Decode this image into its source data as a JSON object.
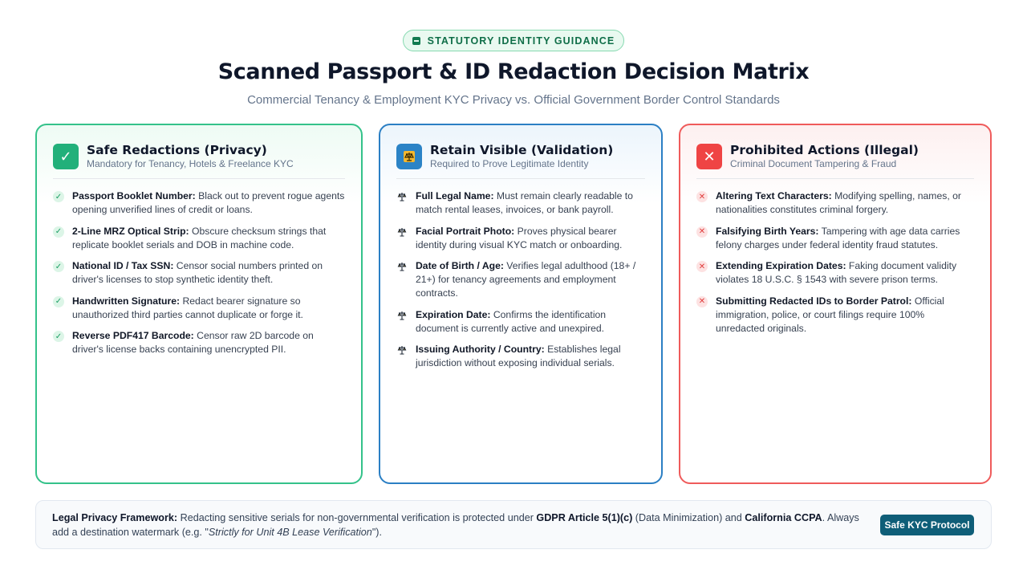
{
  "header": {
    "badge": "STATUTORY IDENTITY GUIDANCE",
    "title": "Scanned Passport & ID Redaction Decision Matrix",
    "subtitle": "Commercial Tenancy & Employment KYC Privacy vs. Official Government Border Control Standards"
  },
  "colors": {
    "safe": "#22b07a",
    "retain": "#2b83c6",
    "prohibited": "#ef4444",
    "button": "#0f5e78"
  },
  "cards": {
    "safe": {
      "icon": "checkmark-icon",
      "title": "Safe Redactions (Privacy)",
      "subtitle": "Mandatory for Tenancy, Hotels & Freelance KYC",
      "items": [
        {
          "term": "Passport Booklet Number:",
          "desc": " Black out to prevent rogue agents opening unverified lines of credit or loans."
        },
        {
          "term": "2-Line MRZ Optical Strip:",
          "desc": " Obscure checksum strings that replicate booklet serials and DOB in machine code."
        },
        {
          "term": "National ID / Tax SSN:",
          "desc": " Censor social numbers printed on driver's licenses to stop synthetic identity theft."
        },
        {
          "term": "Handwritten Signature:",
          "desc": " Redact bearer signature so unauthorized third parties cannot duplicate or forge it."
        },
        {
          "term": "Reverse PDF417 Barcode:",
          "desc": " Censor raw 2D barcode on driver's license backs containing unencrypted PII."
        }
      ]
    },
    "retain": {
      "icon": "scales-icon",
      "title": "Retain Visible (Validation)",
      "subtitle": "Required to Prove Legitimate Identity",
      "items": [
        {
          "term": "Full Legal Name:",
          "desc": " Must remain clearly readable to match rental leases, invoices, or bank payroll."
        },
        {
          "term": "Facial Portrait Photo:",
          "desc": " Proves physical bearer identity during visual KYC match or onboarding."
        },
        {
          "term": "Date of Birth / Age:",
          "desc": " Verifies legal adulthood (18+ / 21+) for tenancy agreements and employment contracts."
        },
        {
          "term": "Expiration Date:",
          "desc": " Confirms the identification document is currently active and unexpired."
        },
        {
          "term": "Issuing Authority / Country:",
          "desc": " Establishes legal jurisdiction without exposing individual serials."
        }
      ]
    },
    "prohibited": {
      "icon": "cross-icon",
      "title": "Prohibited Actions (Illegal)",
      "subtitle": "Criminal Document Tampering & Fraud",
      "items": [
        {
          "term": "Altering Text Characters:",
          "desc": " Modifying spelling, names, or nationalities constitutes criminal forgery."
        },
        {
          "term": "Falsifying Birth Years:",
          "desc": " Tampering with age data carries felony charges under federal identity fraud statutes."
        },
        {
          "term": "Extending Expiration Dates:",
          "desc": " Faking document validity violates 18 U.S.C. § 1543 with severe prison terms."
        },
        {
          "term": "Submitting Redacted IDs to Border Patrol:",
          "desc": " Official immigration, police, or court filings require 100% unredacted originals."
        }
      ]
    }
  },
  "footer": {
    "lead": "Legal Privacy Framework:",
    "text1": " Redacting sensitive serials for non-governmental verification is protected under ",
    "gdpr": "GDPR Article 5(1)(c)",
    "text2": " (Data Minimization) and ",
    "ccpa": "California CCPA",
    "text3": ". Always add a destination watermark (e.g. \"",
    "example": "Strictly for Unit 4B Lease Verification",
    "text4": "\").",
    "button": "Safe KYC Protocol"
  }
}
